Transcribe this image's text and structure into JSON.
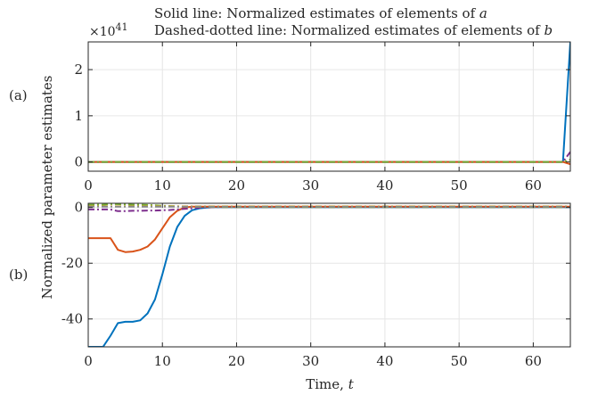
{
  "figure": {
    "title_line1": "Solid line: Normalized estimates of elements of a",
    "title_line2": "Dashed-dotted line: Normalized estimates of elements of b",
    "ylabel": "Normalized parameter estimates",
    "xlabel": "Time, t",
    "panel_a_label": "(a)",
    "panel_b_label": "(b)",
    "exponent_label_a": "×10^41"
  },
  "colors": {
    "blue": "#0072BD",
    "orange": "#D95319",
    "yellow": "#EDB120",
    "purple": "#7E2F8E",
    "green": "#77AC30",
    "gray": "#888888"
  },
  "chart_data": [
    {
      "type": "line",
      "panel": "a",
      "xlim": [
        0,
        65
      ],
      "ylim": [
        -0.2,
        2.6
      ],
      "y_multiplier": "1e41",
      "x_ticks": [
        0,
        10,
        20,
        30,
        40,
        50,
        60
      ],
      "y_ticks": [
        0,
        1,
        2
      ],
      "grid": true,
      "series": [
        {
          "style": "solid",
          "color": "blue",
          "x": [
            0,
            64,
            65
          ],
          "y": [
            0,
            0,
            2.6
          ]
        },
        {
          "style": "solid",
          "color": "orange",
          "x": [
            0,
            64,
            65
          ],
          "y": [
            0,
            0,
            -0.05
          ]
        },
        {
          "style": "dashdot",
          "color": "purple",
          "x": [
            0,
            64,
            65
          ],
          "y": [
            0,
            0,
            0.22
          ]
        },
        {
          "style": "dashdot",
          "color": "green",
          "x": [
            0,
            64,
            65
          ],
          "y": [
            0,
            0,
            0.05
          ]
        }
      ]
    },
    {
      "type": "line",
      "panel": "b",
      "xlim": [
        0,
        65
      ],
      "ylim": [
        -50,
        1.5
      ],
      "x_ticks": [
        0,
        10,
        20,
        30,
        40,
        50,
        60
      ],
      "y_ticks": [
        -40,
        -20,
        0
      ],
      "grid": true,
      "series": [
        {
          "style": "solid",
          "color": "blue",
          "x": [
            0,
            1,
            2,
            3,
            4,
            5,
            6,
            7,
            8,
            9,
            10,
            11,
            12,
            13,
            14,
            15,
            16,
            17,
            18,
            19,
            20,
            25,
            30,
            40,
            50,
            60,
            65
          ],
          "y": [
            -50,
            -50,
            -50,
            -46,
            -41.5,
            -41,
            -41,
            -40.5,
            -38,
            -33,
            -24,
            -14,
            -7,
            -3,
            -1,
            -0.3,
            0,
            0.1,
            0.1,
            0.1,
            0.1,
            0.1,
            0.1,
            0.1,
            0.1,
            0.1,
            0.1
          ]
        },
        {
          "style": "solid",
          "color": "orange",
          "x": [
            0,
            1,
            2,
            3,
            4,
            5,
            6,
            7,
            8,
            9,
            10,
            11,
            12,
            13,
            14,
            15,
            16,
            17,
            18,
            19,
            20,
            25,
            30,
            40,
            50,
            60,
            65
          ],
          "y": [
            -11,
            -11,
            -11,
            -11,
            -15.2,
            -16,
            -15.8,
            -15.2,
            -14,
            -11.5,
            -7.5,
            -3.5,
            -1.2,
            0,
            0.3,
            0.3,
            0.3,
            0.3,
            0.3,
            0.3,
            0.3,
            0.3,
            0.3,
            0.3,
            0.3,
            0.3,
            0.3
          ]
        },
        {
          "style": "dashdot",
          "color": "purple",
          "x": [
            0,
            1,
            2,
            3,
            4,
            5,
            6,
            7,
            8,
            9,
            10,
            11,
            12,
            13,
            14,
            15,
            16,
            17,
            18,
            20,
            30,
            40,
            50,
            60,
            65
          ],
          "y": [
            -0.7,
            -0.7,
            -0.7,
            -0.7,
            -1.3,
            -1.3,
            -1.2,
            -1.2,
            -1.1,
            -1.1,
            -1.0,
            -0.9,
            -0.7,
            -0.5,
            -0.3,
            -0.1,
            0,
            0.1,
            0.1,
            0.1,
            0.1,
            0.1,
            0.1,
            0.1,
            0.1
          ]
        },
        {
          "style": "dashdot",
          "color": "green",
          "x": [
            0,
            1,
            2,
            3,
            4,
            5,
            6,
            7,
            8,
            9,
            10,
            12,
            14,
            16,
            18,
            20,
            30,
            40,
            50,
            60,
            65
          ],
          "y": [
            1,
            1,
            1,
            1.2,
            1.2,
            1.1,
            1.0,
            1.0,
            0.9,
            0.8,
            0.6,
            0.4,
            0.3,
            0.2,
            0.15,
            0.15,
            0.15,
            0.15,
            0.15,
            0.15,
            0.15
          ]
        },
        {
          "style": "dashdot",
          "color": "yellow",
          "x": [
            0,
            5,
            10,
            15,
            20,
            30,
            40,
            50,
            60,
            65
          ],
          "y": [
            0.4,
            0.4,
            0.4,
            0.4,
            0.4,
            0.4,
            0.4,
            0.4,
            0.4,
            0.4
          ]
        },
        {
          "style": "dashdot",
          "color": "gray",
          "x": [
            0,
            5,
            10,
            15,
            20,
            30,
            40,
            50,
            60,
            65
          ],
          "y": [
            0.3,
            0.3,
            0.3,
            0.3,
            0.3,
            0.3,
            0.3,
            0.3,
            0.3,
            0.3
          ]
        }
      ]
    }
  ]
}
